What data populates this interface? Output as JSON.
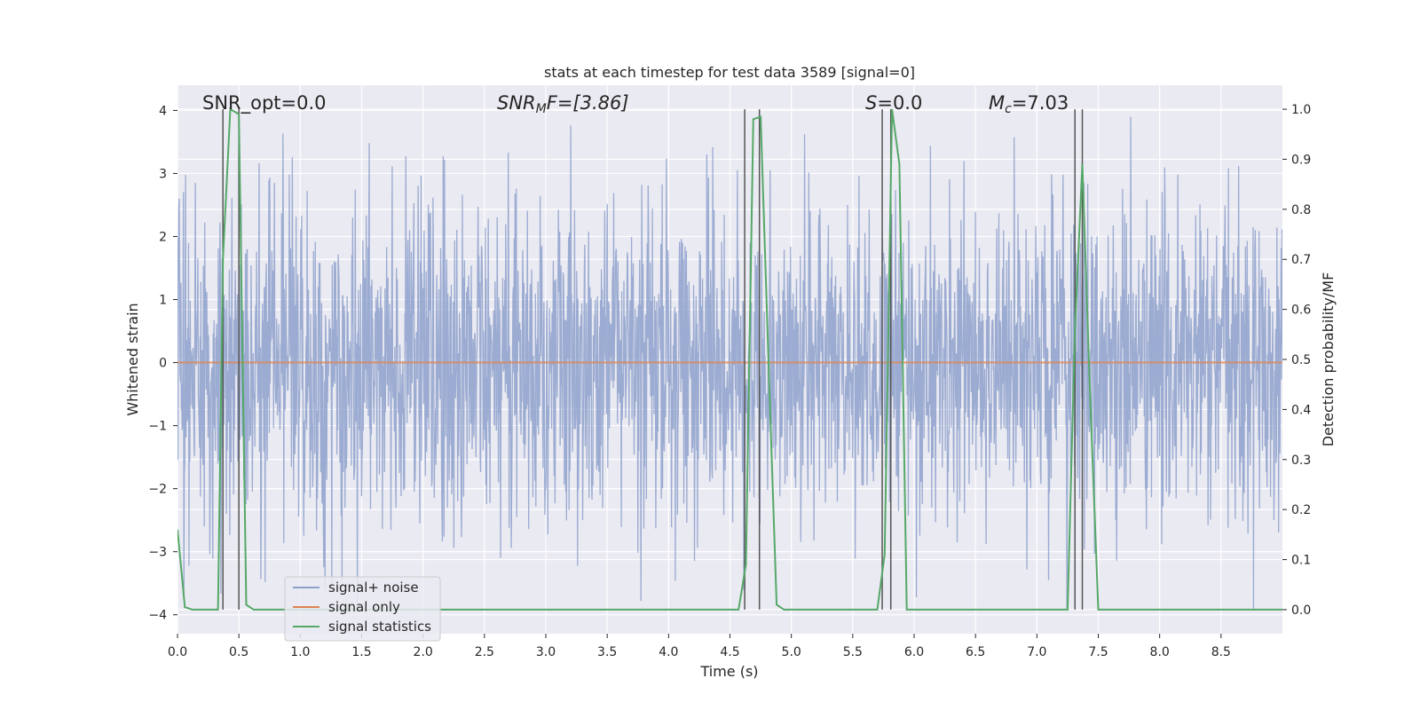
{
  "chart_data": {
    "type": "line",
    "title": "stats at each timestep for test data 3589 [signal=0]",
    "xlabel": "Time (s)",
    "ylabel": "Whitened strain",
    "y2label": "Detection probability/MF",
    "xlim": [
      0,
      9
    ],
    "ylim": [
      -4.3,
      4.4
    ],
    "y2lim": [
      -0.048,
      1.048
    ],
    "xticks": [
      "0.0",
      "0.5",
      "1.0",
      "1.5",
      "2.0",
      "2.5",
      "3.0",
      "3.5",
      "4.0",
      "4.5",
      "5.0",
      "5.5",
      "6.0",
      "6.5",
      "7.0",
      "7.5",
      "8.0",
      "8.5"
    ],
    "yticks": [
      "4",
      "3",
      "2",
      "1",
      "0",
      "−1",
      "−2",
      "−3",
      "−4"
    ],
    "y2ticks": [
      "1.0",
      "0.9",
      "0.8",
      "0.7",
      "0.6",
      "0.5",
      "0.4",
      "0.3",
      "0.2",
      "0.1",
      "0.0"
    ],
    "grid": true,
    "legend_position": "lower-left",
    "annotations": {
      "snr_opt": "SNR_opt=0.0",
      "snr_mf_main": "SNR",
      "snr_mf_sub": "M",
      "snr_mf_rest": "F=[3.86]",
      "s_main": "S",
      "s_rest": "=0.0",
      "mc_main": "M",
      "mc_sub": "c",
      "mc_rest": "=7.03"
    },
    "series": [
      {
        "name": "signal+ noise",
        "color": "#8da0cb",
        "axis": "left",
        "description": "noise trace",
        "approx_std": 1.0,
        "typical_extreme": [
          -3.9,
          3.9
        ]
      },
      {
        "name": "signal only",
        "color": "#dd8452",
        "axis": "left",
        "x": [
          0,
          9
        ],
        "y": [
          0,
          0
        ]
      },
      {
        "name": "signal statistics",
        "color": "#55a868",
        "axis": "right",
        "x": [
          0.0,
          0.06,
          0.12,
          0.3,
          0.33,
          0.37,
          0.43,
          0.5,
          0.56,
          0.62,
          4.57,
          4.63,
          4.69,
          4.75,
          4.82,
          4.88,
          4.94,
          5.7,
          5.76,
          5.82,
          5.88,
          5.94,
          6.0,
          7.25,
          7.31,
          7.37,
          7.43,
          7.5,
          9.0
        ],
        "y": [
          0.16,
          0.005,
          0.0,
          0.0,
          0.0,
          0.7,
          1.0,
          0.99,
          0.01,
          0.0,
          0.0,
          0.09,
          0.98,
          0.985,
          0.45,
          0.01,
          0.0,
          0.0,
          0.11,
          1.0,
          0.89,
          0.0,
          0.0,
          0.0,
          0.56,
          0.89,
          0.45,
          0.0,
          0.0
        ]
      }
    ],
    "vlines": [
      0.37,
      0.5,
      4.62,
      4.74,
      5.74,
      5.81,
      7.31,
      7.37
    ]
  }
}
